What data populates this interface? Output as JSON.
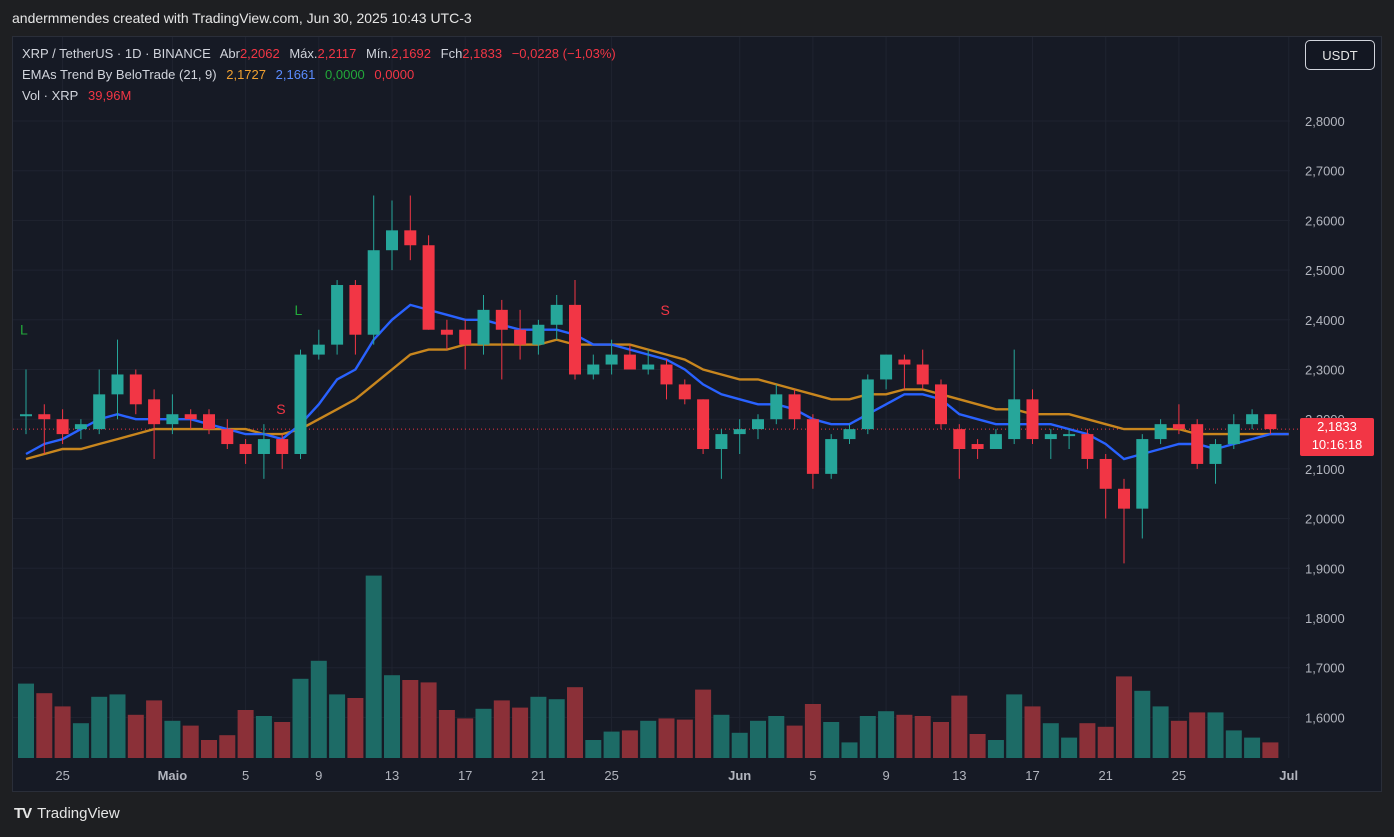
{
  "header": {
    "attribution": "andermmendes created with TradingView.com, Jun 30, 2025 10:43 UTC-3"
  },
  "legend": {
    "symbol": "XRP / TetherUS · 1D · BINANCE",
    "open_label": "Abr",
    "open": "2,2062",
    "high_label": "Máx.",
    "high": "2,2117",
    "low_label": "Mín.",
    "low": "2,1692",
    "close_label": "Fch",
    "close": "2,1833",
    "change": "−0,0228 (−1,03%)",
    "ema_name": "EMAs Trend By BeloTrade (21, 9)",
    "ema_v1": "2,1727",
    "ema_v2": "2,1661",
    "ema_v3": "0,0000",
    "ema_v4": "0,0000",
    "vol_name": "Vol · XRP",
    "vol": "39,96M"
  },
  "currency_button": "USDT",
  "price_tag": {
    "price": "2,1833",
    "countdown": "10:16:18"
  },
  "footer": {
    "logo_mark": "TV",
    "brand": "TradingView"
  },
  "colors": {
    "up": "#26a69a",
    "down": "#f23645",
    "ema_fast": "#2962ff",
    "ema_slow": "#c8861e",
    "up_vol": "#1d6b66",
    "down_vol": "#8b3038"
  },
  "chart_data": {
    "type": "candlestick",
    "y_ticks": [
      "2,8000",
      "2,7000",
      "2,6000",
      "2,5000",
      "2,4000",
      "2,3000",
      "2,2000",
      "2,1000",
      "2,0000",
      "1,9000",
      "1,8000",
      "1,7000",
      "1,6000"
    ],
    "y_range": [
      1.53,
      2.93
    ],
    "x_ticks": [
      {
        "label": "25",
        "i": 2
      },
      {
        "label": "Maio",
        "i": 8
      },
      {
        "label": "5",
        "i": 12
      },
      {
        "label": "9",
        "i": 16
      },
      {
        "label": "13",
        "i": 20
      },
      {
        "label": "17",
        "i": 24
      },
      {
        "label": "21",
        "i": 28
      },
      {
        "label": "25",
        "i": 32
      },
      {
        "label": "Jun",
        "i": 39
      },
      {
        "label": "5",
        "i": 43
      },
      {
        "label": "9",
        "i": 47
      },
      {
        "label": "13",
        "i": 51
      },
      {
        "label": "17",
        "i": 55
      },
      {
        "label": "21",
        "i": 59
      },
      {
        "label": "25",
        "i": 63
      },
      {
        "label": "Jul",
        "i": 69
      }
    ],
    "signals": [
      {
        "label": "L",
        "i": 0,
        "price": 2.37,
        "type": "long"
      },
      {
        "label": "S",
        "i": 14,
        "price": 2.21,
        "type": "short"
      },
      {
        "label": "L",
        "i": 15,
        "price": 2.41,
        "type": "long"
      },
      {
        "label": "S",
        "i": 35,
        "price": 2.41,
        "type": "short"
      }
    ],
    "candles": [
      {
        "o": 2.21,
        "h": 2.3,
        "l": 2.17,
        "c": 2.21,
        "v": 0.62
      },
      {
        "o": 2.21,
        "h": 2.23,
        "l": 2.13,
        "c": 2.2,
        "v": 0.54
      },
      {
        "o": 2.2,
        "h": 2.22,
        "l": 2.15,
        "c": 2.17,
        "v": 0.43
      },
      {
        "o": 2.18,
        "h": 2.2,
        "l": 2.16,
        "c": 2.19,
        "v": 0.29
      },
      {
        "o": 2.18,
        "h": 2.3,
        "l": 2.17,
        "c": 2.25,
        "v": 0.51
      },
      {
        "o": 2.25,
        "h": 2.36,
        "l": 2.2,
        "c": 2.29,
        "v": 0.53
      },
      {
        "o": 2.29,
        "h": 2.3,
        "l": 2.21,
        "c": 2.23,
        "v": 0.36
      },
      {
        "o": 2.24,
        "h": 2.26,
        "l": 2.12,
        "c": 2.19,
        "v": 0.48
      },
      {
        "o": 2.19,
        "h": 2.25,
        "l": 2.17,
        "c": 2.21,
        "v": 0.31
      },
      {
        "o": 2.21,
        "h": 2.22,
        "l": 2.18,
        "c": 2.2,
        "v": 0.27
      },
      {
        "o": 2.21,
        "h": 2.22,
        "l": 2.17,
        "c": 2.18,
        "v": 0.15
      },
      {
        "o": 2.18,
        "h": 2.2,
        "l": 2.14,
        "c": 2.15,
        "v": 0.19
      },
      {
        "o": 2.15,
        "h": 2.16,
        "l": 2.11,
        "c": 2.13,
        "v": 0.4
      },
      {
        "o": 2.13,
        "h": 2.19,
        "l": 2.08,
        "c": 2.16,
        "v": 0.35
      },
      {
        "o": 2.16,
        "h": 2.17,
        "l": 2.1,
        "c": 2.13,
        "v": 0.3
      },
      {
        "o": 2.13,
        "h": 2.34,
        "l": 2.12,
        "c": 2.33,
        "v": 0.66
      },
      {
        "o": 2.33,
        "h": 2.38,
        "l": 2.32,
        "c": 2.35,
        "v": 0.81
      },
      {
        "o": 2.35,
        "h": 2.48,
        "l": 2.33,
        "c": 2.47,
        "v": 0.53
      },
      {
        "o": 2.47,
        "h": 2.48,
        "l": 2.33,
        "c": 2.37,
        "v": 0.5
      },
      {
        "o": 2.37,
        "h": 2.65,
        "l": 2.35,
        "c": 2.54,
        "v": 1.52
      },
      {
        "o": 2.54,
        "h": 2.64,
        "l": 2.5,
        "c": 2.58,
        "v": 0.69
      },
      {
        "o": 2.58,
        "h": 2.65,
        "l": 2.52,
        "c": 2.55,
        "v": 0.65
      },
      {
        "o": 2.55,
        "h": 2.57,
        "l": 2.38,
        "c": 2.38,
        "v": 0.63
      },
      {
        "o": 2.38,
        "h": 2.4,
        "l": 2.34,
        "c": 2.37,
        "v": 0.4
      },
      {
        "o": 2.38,
        "h": 2.4,
        "l": 2.3,
        "c": 2.35,
        "v": 0.33
      },
      {
        "o": 2.35,
        "h": 2.45,
        "l": 2.33,
        "c": 2.42,
        "v": 0.41
      },
      {
        "o": 2.42,
        "h": 2.44,
        "l": 2.28,
        "c": 2.38,
        "v": 0.48
      },
      {
        "o": 2.38,
        "h": 2.42,
        "l": 2.32,
        "c": 2.35,
        "v": 0.42
      },
      {
        "o": 2.35,
        "h": 2.4,
        "l": 2.33,
        "c": 2.39,
        "v": 0.51
      },
      {
        "o": 2.39,
        "h": 2.45,
        "l": 2.36,
        "c": 2.43,
        "v": 0.49
      },
      {
        "o": 2.43,
        "h": 2.48,
        "l": 2.28,
        "c": 2.29,
        "v": 0.59
      },
      {
        "o": 2.29,
        "h": 2.33,
        "l": 2.28,
        "c": 2.31,
        "v": 0.15
      },
      {
        "o": 2.31,
        "h": 2.36,
        "l": 2.29,
        "c": 2.33,
        "v": 0.22
      },
      {
        "o": 2.33,
        "h": 2.35,
        "l": 2.3,
        "c": 2.3,
        "v": 0.23
      },
      {
        "o": 2.3,
        "h": 2.34,
        "l": 2.29,
        "c": 2.31,
        "v": 0.31
      },
      {
        "o": 2.31,
        "h": 2.32,
        "l": 2.24,
        "c": 2.27,
        "v": 0.33
      },
      {
        "o": 2.27,
        "h": 2.28,
        "l": 2.23,
        "c": 2.24,
        "v": 0.32
      },
      {
        "o": 2.24,
        "h": 2.24,
        "l": 2.13,
        "c": 2.14,
        "v": 0.57
      },
      {
        "o": 2.14,
        "h": 2.18,
        "l": 2.08,
        "c": 2.17,
        "v": 0.36
      },
      {
        "o": 2.17,
        "h": 2.2,
        "l": 2.13,
        "c": 2.18,
        "v": 0.21
      },
      {
        "o": 2.18,
        "h": 2.21,
        "l": 2.16,
        "c": 2.2,
        "v": 0.31
      },
      {
        "o": 2.2,
        "h": 2.27,
        "l": 2.19,
        "c": 2.25,
        "v": 0.35
      },
      {
        "o": 2.25,
        "h": 2.26,
        "l": 2.18,
        "c": 2.2,
        "v": 0.27
      },
      {
        "o": 2.2,
        "h": 2.21,
        "l": 2.06,
        "c": 2.09,
        "v": 0.45
      },
      {
        "o": 2.09,
        "h": 2.17,
        "l": 2.08,
        "c": 2.16,
        "v": 0.3
      },
      {
        "o": 2.16,
        "h": 2.19,
        "l": 2.15,
        "c": 2.18,
        "v": 0.13
      },
      {
        "o": 2.18,
        "h": 2.29,
        "l": 2.17,
        "c": 2.28,
        "v": 0.35
      },
      {
        "o": 2.28,
        "h": 2.33,
        "l": 2.26,
        "c": 2.33,
        "v": 0.39
      },
      {
        "o": 2.32,
        "h": 2.33,
        "l": 2.26,
        "c": 2.31,
        "v": 0.36
      },
      {
        "o": 2.31,
        "h": 2.34,
        "l": 2.26,
        "c": 2.27,
        "v": 0.35
      },
      {
        "o": 2.27,
        "h": 2.28,
        "l": 2.18,
        "c": 2.19,
        "v": 0.3
      },
      {
        "o": 2.18,
        "h": 2.19,
        "l": 2.08,
        "c": 2.14,
        "v": 0.52
      },
      {
        "o": 2.15,
        "h": 2.16,
        "l": 2.12,
        "c": 2.14,
        "v": 0.2
      },
      {
        "o": 2.14,
        "h": 2.18,
        "l": 2.14,
        "c": 2.17,
        "v": 0.15
      },
      {
        "o": 2.16,
        "h": 2.34,
        "l": 2.15,
        "c": 2.24,
        "v": 0.53
      },
      {
        "o": 2.24,
        "h": 2.26,
        "l": 2.15,
        "c": 2.16,
        "v": 0.43
      },
      {
        "o": 2.16,
        "h": 2.18,
        "l": 2.12,
        "c": 2.17,
        "v": 0.29
      },
      {
        "o": 2.17,
        "h": 2.18,
        "l": 2.14,
        "c": 2.17,
        "v": 0.17
      },
      {
        "o": 2.17,
        "h": 2.18,
        "l": 2.1,
        "c": 2.12,
        "v": 0.29
      },
      {
        "o": 2.12,
        "h": 2.13,
        "l": 2.0,
        "c": 2.06,
        "v": 0.26
      },
      {
        "o": 2.06,
        "h": 2.08,
        "l": 1.91,
        "c": 2.02,
        "v": 0.68
      },
      {
        "o": 2.02,
        "h": 2.17,
        "l": 1.96,
        "c": 2.16,
        "v": 0.56
      },
      {
        "o": 2.16,
        "h": 2.2,
        "l": 2.15,
        "c": 2.19,
        "v": 0.43
      },
      {
        "o": 2.19,
        "h": 2.23,
        "l": 2.17,
        "c": 2.18,
        "v": 0.31
      },
      {
        "o": 2.19,
        "h": 2.2,
        "l": 2.1,
        "c": 2.11,
        "v": 0.38
      },
      {
        "o": 2.11,
        "h": 2.16,
        "l": 2.07,
        "c": 2.15,
        "v": 0.38
      },
      {
        "o": 2.15,
        "h": 2.21,
        "l": 2.14,
        "c": 2.19,
        "v": 0.23
      },
      {
        "o": 2.19,
        "h": 2.22,
        "l": 2.18,
        "c": 2.21,
        "v": 0.17
      },
      {
        "o": 2.21,
        "h": 2.21,
        "l": 2.17,
        "c": 2.18,
        "v": 0.13
      }
    ],
    "ema_fast": [
      2.13,
      2.15,
      2.16,
      2.18,
      2.2,
      2.21,
      2.2,
      2.2,
      2.2,
      2.2,
      2.19,
      2.18,
      2.17,
      2.17,
      2.16,
      2.19,
      2.23,
      2.28,
      2.3,
      2.36,
      2.4,
      2.43,
      2.42,
      2.41,
      2.4,
      2.4,
      2.39,
      2.38,
      2.38,
      2.38,
      2.37,
      2.35,
      2.35,
      2.34,
      2.33,
      2.32,
      2.3,
      2.27,
      2.25,
      2.24,
      2.23,
      2.23,
      2.22,
      2.2,
      2.19,
      2.19,
      2.21,
      2.23,
      2.25,
      2.25,
      2.24,
      2.21,
      2.2,
      2.19,
      2.19,
      2.19,
      2.19,
      2.18,
      2.17,
      2.15,
      2.12,
      2.13,
      2.14,
      2.15,
      2.15,
      2.14,
      2.15,
      2.16,
      2.17,
      2.17
    ],
    "ema_slow": [
      2.12,
      2.13,
      2.14,
      2.14,
      2.15,
      2.16,
      2.17,
      2.18,
      2.18,
      2.18,
      2.18,
      2.18,
      2.18,
      2.17,
      2.17,
      2.18,
      2.2,
      2.22,
      2.24,
      2.27,
      2.3,
      2.33,
      2.34,
      2.34,
      2.35,
      2.35,
      2.35,
      2.35,
      2.35,
      2.36,
      2.35,
      2.35,
      2.35,
      2.35,
      2.34,
      2.33,
      2.32,
      2.3,
      2.29,
      2.28,
      2.28,
      2.27,
      2.26,
      2.25,
      2.24,
      2.24,
      2.25,
      2.25,
      2.26,
      2.26,
      2.25,
      2.24,
      2.23,
      2.22,
      2.22,
      2.21,
      2.21,
      2.21,
      2.2,
      2.19,
      2.18,
      2.18,
      2.18,
      2.18,
      2.17,
      2.17,
      2.17,
      2.17,
      2.17,
      2.17
    ]
  }
}
